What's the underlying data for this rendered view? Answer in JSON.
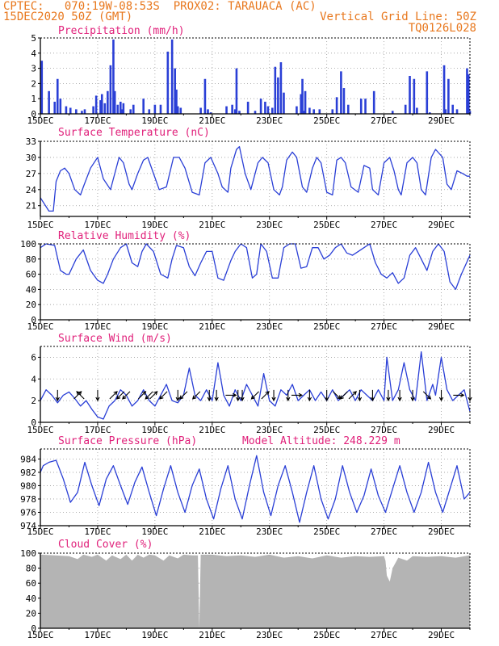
{
  "header": {
    "line1": "CPTEC:   070:19W-08:53S  PROX02: TARAUACA (AC)",
    "line2_left": "15DEC2020 50Z (GMT)",
    "line2_right": "Vertical Grid Line: 50Z",
    "line3_right": "TQ0126L028"
  },
  "colors": {
    "header": "#e8781e",
    "title": "#e0207a",
    "series": "#2a3fd6",
    "cloud": "#b4b4b4",
    "grid": "#9a9a9a"
  },
  "chart_data": [
    {
      "type": "bar",
      "title": "Precipitation (mm/h)",
      "ylim": [
        0,
        5
      ],
      "yticks": [
        0,
        1,
        2,
        3,
        4,
        5
      ],
      "xlim": [
        0,
        15
      ],
      "xticks": [
        {
          "x": 0,
          "label": "15DEC"
        },
        {
          "x": 2,
          "label": "17DEC"
        },
        {
          "x": 4,
          "label": "19DEC"
        },
        {
          "x": 6,
          "label": "21DEC"
        },
        {
          "x": 8,
          "label": "23DEC"
        },
        {
          "x": 10,
          "label": "25DEC"
        },
        {
          "x": 12,
          "label": "27DEC"
        },
        {
          "x": 14,
          "label": "29DEC"
        }
      ],
      "x": [
        0.05,
        0.3,
        0.5,
        0.6,
        0.7,
        0.9,
        1.05,
        1.25,
        1.45,
        1.55,
        1.85,
        1.95,
        2.1,
        2.15,
        2.25,
        2.35,
        2.45,
        2.55,
        2.6,
        2.7,
        2.8,
        2.85,
        2.9,
        3.15,
        3.25,
        3.6,
        3.8,
        4.0,
        4.2,
        4.45,
        4.6,
        4.7,
        4.75,
        4.8,
        4.9,
        5.6,
        5.75,
        5.85,
        5.95,
        6.5,
        6.7,
        6.8,
        6.85,
        6.95,
        7.25,
        7.5,
        7.7,
        7.85,
        7.95,
        8.1,
        8.2,
        8.3,
        8.4,
        8.5,
        8.95,
        9.1,
        9.15,
        9.2,
        9.25,
        9.4,
        9.55,
        9.75,
        10.2,
        10.35,
        10.5,
        10.6,
        10.75,
        11.2,
        11.35,
        11.65,
        12.3,
        12.75,
        12.9,
        13.05,
        13.15,
        13.5,
        13.6,
        14.1,
        14.15,
        14.25,
        14.4,
        14.55,
        14.9,
        14.95,
        15.0
      ],
      "values": [
        3.5,
        1.5,
        0.8,
        2.3,
        1.0,
        0.5,
        0.4,
        0.3,
        0.2,
        0.3,
        0.5,
        1.2,
        0.9,
        1.3,
        0.7,
        1.5,
        3.2,
        4.9,
        1.5,
        0.6,
        0.8,
        0.3,
        0.7,
        0.3,
        0.6,
        1.0,
        0.3,
        0.6,
        0.6,
        4.1,
        4.9,
        3.0,
        1.6,
        0.5,
        0.4,
        0.4,
        2.3,
        0.3,
        0.1,
        0.5,
        0.6,
        0.3,
        3.0,
        0.2,
        0.8,
        0.2,
        1.0,
        0.8,
        0.5,
        0.4,
        3.1,
        2.4,
        3.4,
        1.4,
        0.5,
        1.3,
        2.3,
        0.2,
        1.5,
        0.4,
        0.3,
        0.3,
        0.3,
        1.1,
        2.8,
        1.7,
        0.6,
        1.0,
        1.0,
        1.5,
        0.2,
        0.6,
        2.5,
        2.3,
        0.4,
        2.8,
        0.1,
        3.2,
        0.3,
        2.3,
        0.6,
        0.3,
        3.0,
        2.6,
        0.2
      ]
    },
    {
      "type": "line",
      "title": "Surface Temperature (nC)",
      "ylim": [
        19,
        33
      ],
      "yticks": [
        21,
        24,
        27,
        30,
        33
      ],
      "xlim": [
        0,
        15
      ],
      "xticks": [
        {
          "x": 0,
          "label": "15DEC"
        },
        {
          "x": 2,
          "label": "17DEC"
        },
        {
          "x": 4,
          "label": "19DEC"
        },
        {
          "x": 6,
          "label": "21DEC"
        },
        {
          "x": 8,
          "label": "23DEC"
        },
        {
          "x": 10,
          "label": "25DEC"
        },
        {
          "x": 12,
          "label": "27DEC"
        },
        {
          "x": 14,
          "label": "29DEC"
        }
      ],
      "x": [
        0,
        0.3,
        0.45,
        0.55,
        0.7,
        0.85,
        1.0,
        1.2,
        1.4,
        1.5,
        1.75,
        2.0,
        2.2,
        2.45,
        2.55,
        2.75,
        2.9,
        3.1,
        3.2,
        3.4,
        3.6,
        3.75,
        3.95,
        4.15,
        4.4,
        4.65,
        4.85,
        5.05,
        5.3,
        5.55,
        5.75,
        5.95,
        6.2,
        6.35,
        6.55,
        6.65,
        6.85,
        6.95,
        7.15,
        7.35,
        7.6,
        7.75,
        7.95,
        8.15,
        8.35,
        8.45,
        8.6,
        8.8,
        8.95,
        9.15,
        9.3,
        9.5,
        9.65,
        9.8,
        10.0,
        10.2,
        10.35,
        10.5,
        10.65,
        10.85,
        11.1,
        11.3,
        11.5,
        11.6,
        11.8,
        12.0,
        12.2,
        12.35,
        12.5,
        12.6,
        12.8,
        13.0,
        13.15,
        13.3,
        13.45,
        13.65,
        13.8,
        14.05,
        14.2,
        14.35,
        14.55,
        14.75,
        14.9,
        15.0
      ],
      "values": [
        22.5,
        20.0,
        20.0,
        25.5,
        27.5,
        28.0,
        27.0,
        24.0,
        23.0,
        24.5,
        28.0,
        30.0,
        26.0,
        24.0,
        26.0,
        30.0,
        29.0,
        25.0,
        24.0,
        27.0,
        29.5,
        30.0,
        27.0,
        24.0,
        24.5,
        30.0,
        30.0,
        28.0,
        23.5,
        23.0,
        29.0,
        30.0,
        27.0,
        24.5,
        23.5,
        28.0,
        31.5,
        32.0,
        27.0,
        24.0,
        29.0,
        30.0,
        29.0,
        24.0,
        23.0,
        24.5,
        29.5,
        31.0,
        30.0,
        24.5,
        23.5,
        28.0,
        30.0,
        29.0,
        23.5,
        23.0,
        29.5,
        30.0,
        29.0,
        24.5,
        23.5,
        28.5,
        28.0,
        24.0,
        23.0,
        29.0,
        30.0,
        27.5,
        24.0,
        23.0,
        29.0,
        30.0,
        29.0,
        24.0,
        23.0,
        30.0,
        31.5,
        30.0,
        25.0,
        24.0,
        27.5,
        27.0,
        26.5,
        26.5
      ]
    },
    {
      "type": "line",
      "title": "Relative Humidity (%)",
      "ylim": [
        0,
        100
      ],
      "yticks": [
        0,
        20,
        40,
        60,
        80,
        100
      ],
      "xlim": [
        0,
        15
      ],
      "xticks": [
        {
          "x": 0,
          "label": "15DEC"
        },
        {
          "x": 2,
          "label": "17DEC"
        },
        {
          "x": 4,
          "label": "19DEC"
        },
        {
          "x": 6,
          "label": "21DEC"
        },
        {
          "x": 8,
          "label": "23DEC"
        },
        {
          "x": 10,
          "label": "25DEC"
        },
        {
          "x": 12,
          "label": "27DEC"
        },
        {
          "x": 14,
          "label": "29DEC"
        }
      ],
      "x": [
        0,
        0.2,
        0.5,
        0.7,
        0.9,
        1.0,
        1.25,
        1.5,
        1.75,
        2.0,
        2.2,
        2.35,
        2.55,
        2.8,
        3.0,
        3.2,
        3.4,
        3.55,
        3.7,
        3.95,
        4.2,
        4.45,
        4.6,
        4.75,
        5.0,
        5.2,
        5.4,
        5.6,
        5.8,
        6.0,
        6.2,
        6.4,
        6.65,
        6.8,
        7.0,
        7.2,
        7.4,
        7.55,
        7.7,
        7.9,
        8.1,
        8.3,
        8.5,
        8.7,
        8.9,
        9.1,
        9.3,
        9.5,
        9.7,
        9.9,
        10.1,
        10.3,
        10.5,
        10.7,
        10.9,
        11.1,
        11.3,
        11.5,
        11.7,
        11.9,
        12.1,
        12.3,
        12.5,
        12.7,
        12.9,
        13.1,
        13.3,
        13.5,
        13.7,
        13.9,
        14.1,
        14.3,
        14.5,
        14.7,
        15.0
      ],
      "values": [
        95,
        100,
        98,
        65,
        60,
        60,
        80,
        92,
        65,
        52,
        48,
        60,
        80,
        95,
        100,
        75,
        70,
        90,
        100,
        90,
        60,
        55,
        80,
        98,
        95,
        70,
        58,
        75,
        90,
        90,
        55,
        52,
        78,
        90,
        100,
        95,
        55,
        60,
        100,
        90,
        55,
        55,
        95,
        100,
        100,
        68,
        70,
        95,
        95,
        80,
        85,
        95,
        100,
        88,
        85,
        90,
        95,
        100,
        75,
        60,
        55,
        62,
        48,
        55,
        85,
        95,
        80,
        65,
        90,
        100,
        90,
        50,
        40,
        60,
        85
      ]
    },
    {
      "type": "line",
      "title": "Surface Wind (m/s)",
      "ylim": [
        0,
        7
      ],
      "yticks": [
        0,
        2,
        4,
        6
      ],
      "xlim": [
        0,
        15
      ],
      "xticks": [
        {
          "x": 0,
          "label": "15DEC"
        },
        {
          "x": 2,
          "label": "17DEC"
        },
        {
          "x": 4,
          "label": "19DEC"
        },
        {
          "x": 6,
          "label": "21DEC"
        },
        {
          "x": 8,
          "label": "23DEC"
        },
        {
          "x": 10,
          "label": "25DEC"
        },
        {
          "x": 12,
          "label": "27DEC"
        },
        {
          "x": 14,
          "label": "29DEC"
        }
      ],
      "x": [
        0,
        0.2,
        0.4,
        0.6,
        0.8,
        1.0,
        1.2,
        1.4,
        1.6,
        1.8,
        2.0,
        2.2,
        2.4,
        2.6,
        2.8,
        3.0,
        3.2,
        3.4,
        3.6,
        3.8,
        4.0,
        4.2,
        4.4,
        4.6,
        4.8,
        5.0,
        5.2,
        5.4,
        5.6,
        5.8,
        6.0,
        6.2,
        6.4,
        6.6,
        6.8,
        7.0,
        7.2,
        7.4,
        7.6,
        7.8,
        8.0,
        8.2,
        8.4,
        8.6,
        8.8,
        9.0,
        9.2,
        9.4,
        9.6,
        9.8,
        10.0,
        10.2,
        10.4,
        10.6,
        10.8,
        11.0,
        11.2,
        11.4,
        11.6,
        11.8,
        12.0,
        12.1,
        12.3,
        12.5,
        12.7,
        12.9,
        13.1,
        13.3,
        13.5,
        13.7,
        13.8,
        14.0,
        14.2,
        14.4,
        14.6,
        14.8,
        15.0
      ],
      "values": [
        2.0,
        3.0,
        2.5,
        1.8,
        2.5,
        2.8,
        2.2,
        1.5,
        2.0,
        1.2,
        0.5,
        0.3,
        1.5,
        2.0,
        3.0,
        2.5,
        1.5,
        2.0,
        3.0,
        2.0,
        1.5,
        2.5,
        3.5,
        2.0,
        1.8,
        2.5,
        5.0,
        2.5,
        2.0,
        3.0,
        2.0,
        5.5,
        2.5,
        1.5,
        3.0,
        2.0,
        3.5,
        2.5,
        1.5,
        4.5,
        2.0,
        1.5,
        3.0,
        2.5,
        3.5,
        2.0,
        2.5,
        3.0,
        2.0,
        2.8,
        2.0,
        3.0,
        2.0,
        2.5,
        3.0,
        2.0,
        3.0,
        2.5,
        2.0,
        3.0,
        2.0,
        6.0,
        2.0,
        3.0,
        5.5,
        3.0,
        2.0,
        6.5,
        2.0,
        3.5,
        2.5,
        6.0,
        3.0,
        2.0,
        2.5,
        3.0,
        1.0
      ],
      "arrows": [
        {
          "x": 0.6,
          "dir": "s"
        },
        {
          "x": 1.3,
          "dir": "ne"
        },
        {
          "x": 1.4,
          "dir": "nw"
        },
        {
          "x": 2.0,
          "dir": "s"
        },
        {
          "x": 2.55,
          "dir": "ne"
        },
        {
          "x": 2.8,
          "dir": "sw"
        },
        {
          "x": 3.0,
          "dir": "sw"
        },
        {
          "x": 3.55,
          "dir": "ne"
        },
        {
          "x": 3.8,
          "dir": "sw"
        },
        {
          "x": 3.95,
          "dir": "ne"
        },
        {
          "x": 4.3,
          "dir": "sw"
        },
        {
          "x": 4.8,
          "dir": "s"
        },
        {
          "x": 5.0,
          "dir": "sw"
        },
        {
          "x": 5.45,
          "dir": "sw"
        },
        {
          "x": 5.9,
          "dir": "s"
        },
        {
          "x": 6.15,
          "dir": "s"
        },
        {
          "x": 6.65,
          "dir": "e"
        },
        {
          "x": 6.9,
          "dir": "s"
        },
        {
          "x": 7.05,
          "dir": "s"
        },
        {
          "x": 7.5,
          "dir": "sw"
        },
        {
          "x": 7.85,
          "dir": "ne"
        },
        {
          "x": 8.15,
          "dir": "s"
        },
        {
          "x": 8.65,
          "dir": "s"
        },
        {
          "x": 8.95,
          "dir": "e"
        },
        {
          "x": 9.4,
          "dir": "s"
        },
        {
          "x": 10.0,
          "dir": "s"
        },
        {
          "x": 10.35,
          "dir": "se"
        },
        {
          "x": 10.6,
          "dir": "sw"
        },
        {
          "x": 10.9,
          "dir": "ne"
        },
        {
          "x": 11.15,
          "dir": "s"
        },
        {
          "x": 11.6,
          "dir": "s"
        },
        {
          "x": 12.15,
          "dir": "s"
        },
        {
          "x": 12.55,
          "dir": "s"
        },
        {
          "x": 13.0,
          "dir": "s"
        },
        {
          "x": 13.5,
          "dir": "se"
        },
        {
          "x": 14.0,
          "dir": "s"
        },
        {
          "x": 14.6,
          "dir": "e"
        },
        {
          "x": 15.0,
          "dir": "s"
        }
      ]
    },
    {
      "type": "line",
      "title": "Surface Pressure (hPa)",
      "annotation": "Model Altitude: 248.229  m",
      "ylim": [
        974,
        985.5
      ],
      "yticks": [
        974,
        976,
        978,
        980,
        982,
        984
      ],
      "xlim": [
        0,
        15
      ],
      "xticks": [
        {
          "x": 0,
          "label": "15DEC"
        },
        {
          "x": 2,
          "label": "17DEC"
        },
        {
          "x": 4,
          "label": "19DEC"
        },
        {
          "x": 6,
          "label": "21DEC"
        },
        {
          "x": 8,
          "label": "23DEC"
        },
        {
          "x": 10,
          "label": "25DEC"
        },
        {
          "x": 12,
          "label": "27DEC"
        },
        {
          "x": 14,
          "label": "29DEC"
        }
      ],
      "x": [
        0,
        0.1,
        0.3,
        0.55,
        0.8,
        1.05,
        1.3,
        1.55,
        1.8,
        2.05,
        2.3,
        2.55,
        2.8,
        3.05,
        3.3,
        3.55,
        3.8,
        4.05,
        4.3,
        4.55,
        4.8,
        5.05,
        5.3,
        5.55,
        5.8,
        6.05,
        6.3,
        6.55,
        6.8,
        7.05,
        7.3,
        7.55,
        7.8,
        8.05,
        8.3,
        8.55,
        8.8,
        9.05,
        9.3,
        9.55,
        9.8,
        10.05,
        10.3,
        10.55,
        10.8,
        11.05,
        11.3,
        11.55,
        11.8,
        12.05,
        12.3,
        12.55,
        12.8,
        13.05,
        13.3,
        13.55,
        13.8,
        14.05,
        14.3,
        14.55,
        14.8,
        15.0
      ],
      "values": [
        982.0,
        983.0,
        983.5,
        983.8,
        981.0,
        977.5,
        979.0,
        983.5,
        980.0,
        977.0,
        981.0,
        983.0,
        980.0,
        977.2,
        980.5,
        982.8,
        979.0,
        975.5,
        979.5,
        983.0,
        979.0,
        976.0,
        980.0,
        982.5,
        978.0,
        975.0,
        979.5,
        983.0,
        978.0,
        975.0,
        980.0,
        984.5,
        979.0,
        975.5,
        980.0,
        983.0,
        979.0,
        974.5,
        979.0,
        983.0,
        978.0,
        975.0,
        978.0,
        983.0,
        979.0,
        976.0,
        978.5,
        982.5,
        978.5,
        976.0,
        979.5,
        983.0,
        979.0,
        976.0,
        979.0,
        983.5,
        979.0,
        976.0,
        979.5,
        983.0,
        978.0,
        979.0
      ]
    },
    {
      "type": "area",
      "title": "Cloud Cover (%)",
      "ylim": [
        0,
        100
      ],
      "yticks": [
        0,
        20,
        40,
        60,
        80,
        100
      ],
      "xlim": [
        0,
        15
      ],
      "xticks": [
        {
          "x": 0,
          "label": "15DEC"
        },
        {
          "x": 2,
          "label": "17DEC"
        },
        {
          "x": 4,
          "label": "19DEC"
        },
        {
          "x": 6,
          "label": "21DEC"
        },
        {
          "x": 8,
          "label": "23DEC"
        },
        {
          "x": 10,
          "label": "25DEC"
        },
        {
          "x": 12,
          "label": "27DEC"
        },
        {
          "x": 14,
          "label": "29DEC"
        }
      ],
      "x": [
        0,
        0.5,
        1.0,
        1.3,
        1.5,
        1.8,
        2.0,
        2.3,
        2.5,
        2.8,
        3.0,
        3.2,
        3.4,
        3.6,
        3.8,
        4.0,
        4.3,
        4.5,
        4.8,
        5.0,
        5.3,
        5.5,
        5.55,
        5.6,
        5.8,
        6.0,
        6.5,
        7.0,
        7.5,
        8.0,
        8.5,
        9.0,
        9.5,
        10.0,
        10.5,
        11.0,
        11.5,
        12.0,
        12.05,
        12.1,
        12.2,
        12.3,
        12.5,
        12.8,
        13.0,
        13.5,
        14.0,
        14.5,
        15.0
      ],
      "values": [
        98,
        97,
        96,
        92,
        98,
        95,
        98,
        90,
        97,
        92,
        98,
        90,
        98,
        94,
        98,
        97,
        90,
        97,
        93,
        98,
        97,
        97,
        0,
        98,
        98,
        98,
        96,
        97,
        95,
        98,
        94,
        96,
        93,
        97,
        94,
        96,
        95,
        96,
        90,
        70,
        62,
        80,
        94,
        90,
        96,
        95,
        96,
        94,
        97
      ]
    }
  ]
}
